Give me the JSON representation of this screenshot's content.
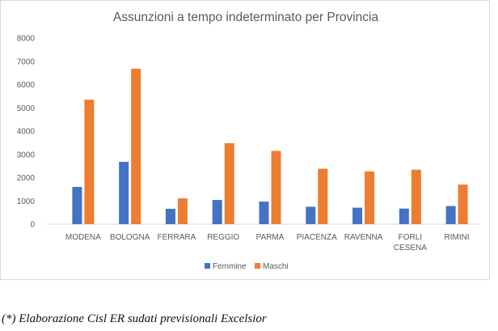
{
  "chart_data": {
    "type": "bar",
    "title": "Assunzioni a tempo indeterminato per Provincia",
    "xlabel": "",
    "ylabel": "",
    "categories": [
      [
        "MODENA"
      ],
      [
        "BOLOGNA"
      ],
      [
        "FERRARA"
      ],
      [
        "REGGIO"
      ],
      [
        "PARMA"
      ],
      [
        "PIACENZA"
      ],
      [
        "RAVENNA"
      ],
      [
        "FORLI",
        "CESENA"
      ],
      [
        "RIMINI"
      ]
    ],
    "series": [
      {
        "name": "Femmine",
        "color": "#4472c4",
        "values": [
          1600,
          2680,
          660,
          1040,
          970,
          750,
          710,
          670,
          780
        ]
      },
      {
        "name": "Maschi",
        "color": "#ed7d31",
        "values": [
          5350,
          6680,
          1110,
          3480,
          3150,
          2380,
          2270,
          2340,
          1700
        ]
      }
    ],
    "ylim": [
      0,
      8000
    ],
    "yticks": [
      0,
      1000,
      2000,
      3000,
      4000,
      5000,
      6000,
      7000,
      8000
    ],
    "grid": false,
    "legend_position": "bottom"
  },
  "caption": "(*) Elaborazione Cisl ER sudati previsionali Excelsior"
}
